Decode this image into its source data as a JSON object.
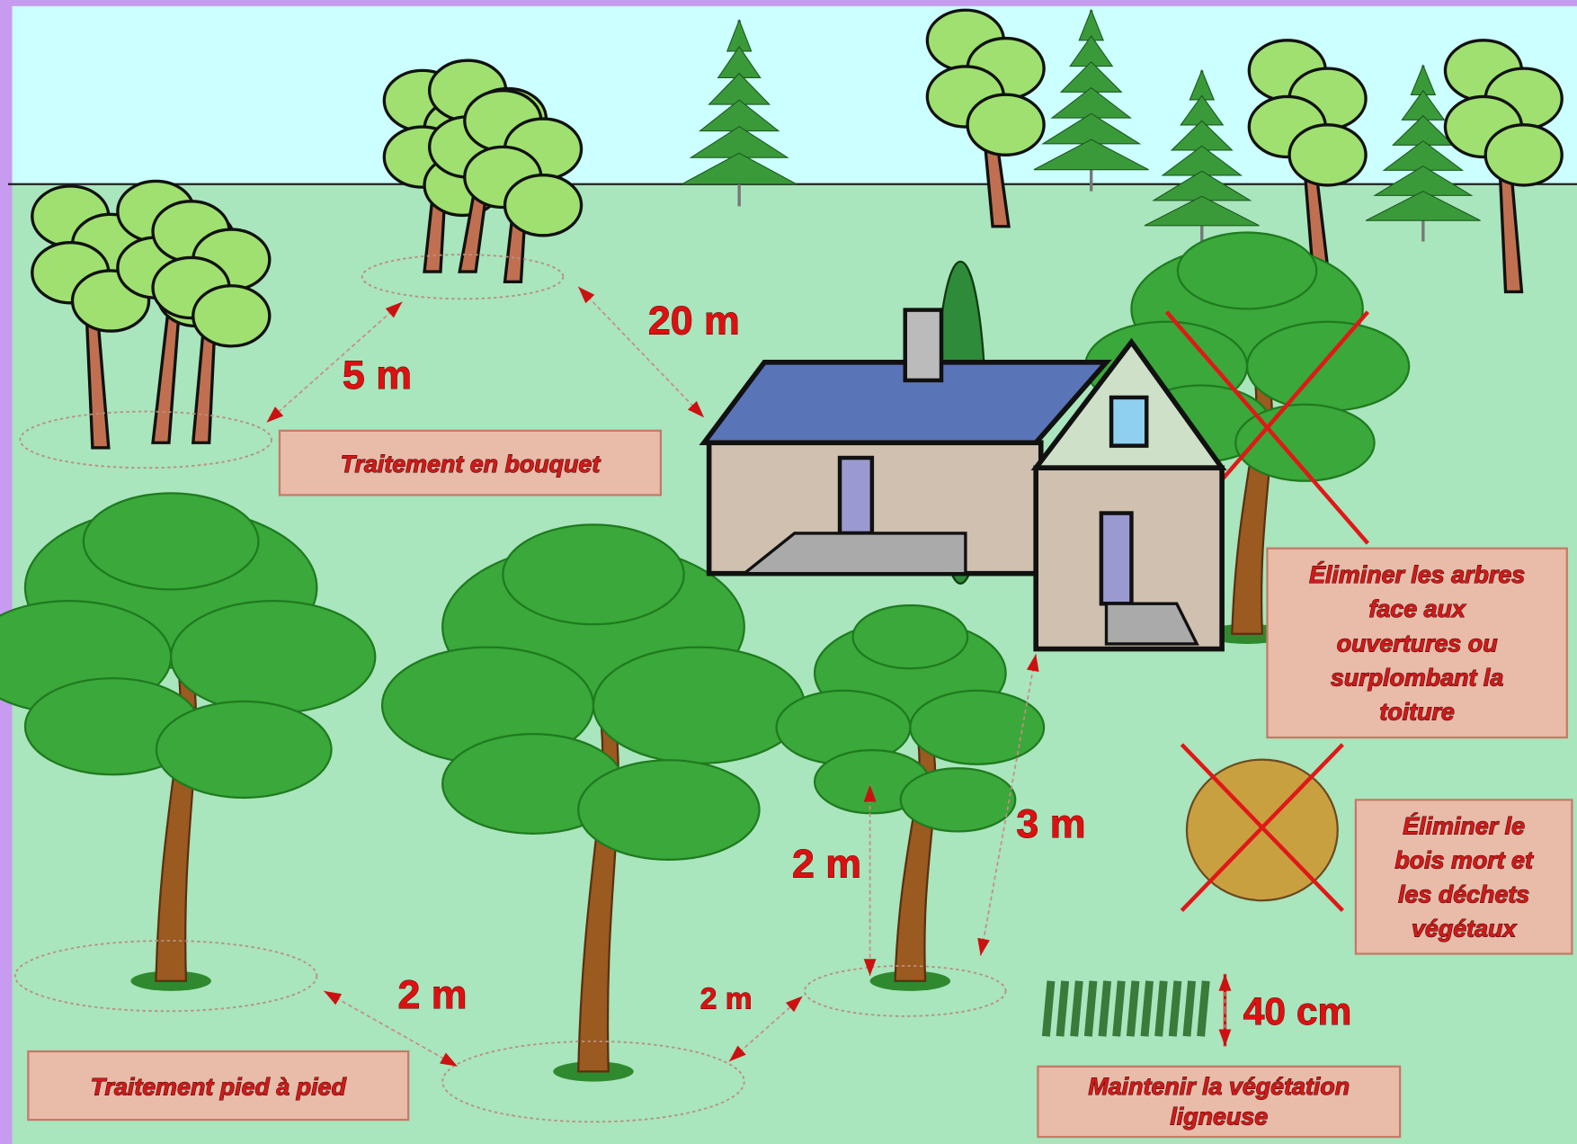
{
  "distances": [
    "20 m",
    "5 m",
    "3 m",
    "2 m",
    "2 m",
    "2 m",
    "40 cm"
  ],
  "boxes": [
    {
      "lines": [
        "Traitement en bouquet"
      ]
    },
    {
      "lines": [
        "Éliminer les arbres",
        "face aux",
        "ouvertures ou",
        "surplombant la",
        "toiture"
      ]
    },
    {
      "lines": [
        "Éliminer le",
        "bois mort et",
        "les déchets",
        "végétaux"
      ]
    },
    {
      "lines": [
        "Maintenir la végétation",
        "ligneuse"
      ]
    },
    {
      "lines": [
        "Traitement pied à pied"
      ]
    }
  ]
}
